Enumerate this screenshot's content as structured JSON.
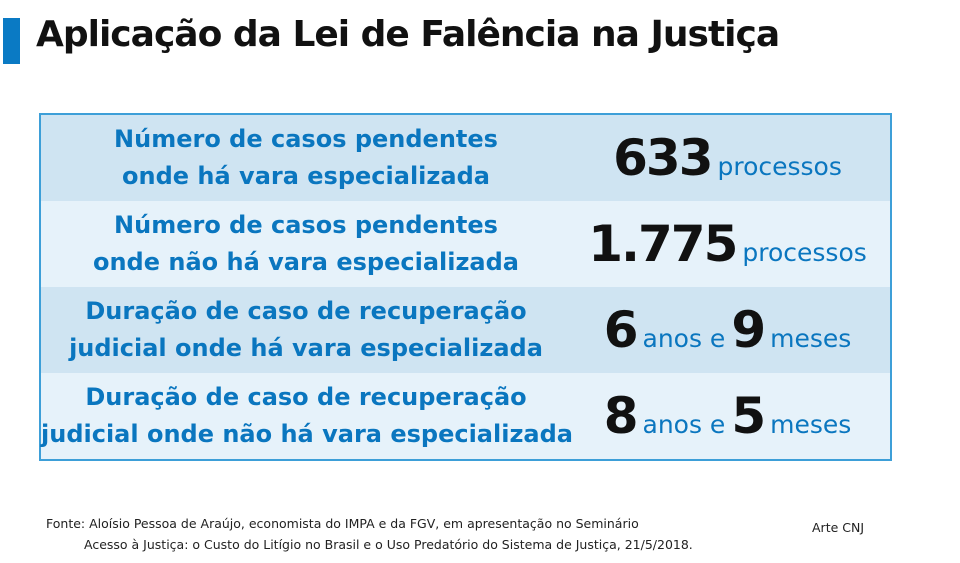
{
  "title": "Aplicação da Lei de Falência na Justiça",
  "colors": {
    "accent": "#0a7ac4",
    "row_dark": "#cfe4f2",
    "row_light": "#e6f2fa",
    "border": "#3d9fd8",
    "label_text": "#0a76bf"
  },
  "rows": [
    {
      "label_line1": "Número de casos pendentes",
      "label_line2": "onde há vara especializada",
      "value_number": "633",
      "value_unit": "processos"
    },
    {
      "label_line1": "Número de casos pendentes",
      "label_line2": "onde não há vara especializada",
      "value_number": "1.775",
      "value_unit": "processos"
    },
    {
      "label_line1": "Duração de caso de recuperação",
      "label_line2": "judicial onde há vara especializada",
      "years": "6",
      "years_text": "anos e",
      "months": "9",
      "months_text": "meses"
    },
    {
      "label_line1": "Duração de caso de recuperação",
      "label_line2": "judicial onde não há vara especializada",
      "years": "8",
      "years_text": "anos e",
      "months": "5",
      "months_text": "meses"
    }
  ],
  "footer": {
    "source_line1": "Fonte: Aloísio Pessoa de Araújo, economista do IMPA e da FGV, em apresentação no Seminário",
    "source_line2": "Acesso à Justiça:  o Custo do Litígio no Brasil e o Uso Predatório do Sistema de Justiça, 21/5/2018.",
    "credit": "Arte CNJ"
  }
}
